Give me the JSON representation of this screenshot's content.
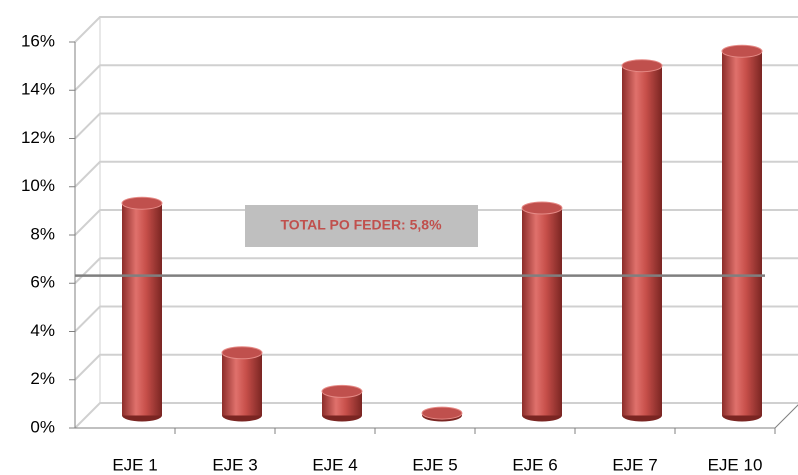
{
  "chart_data": {
    "type": "bar",
    "categories": [
      "EJE 1",
      "EJE 3",
      "EJE 4",
      "EJE 5",
      "EJE 6",
      "EJE 7",
      "EJE 10"
    ],
    "values": [
      8.8,
      2.6,
      1.0,
      0.1,
      8.6,
      14.5,
      15.1
    ],
    "color": "#c0504d",
    "ylim": [
      0,
      16
    ],
    "yticks": [
      {
        "value": 0,
        "label": "0%"
      },
      {
        "value": 2,
        "label": "2%"
      },
      {
        "value": 4,
        "label": "4%"
      },
      {
        "value": 6,
        "label": "6%"
      },
      {
        "value": 8,
        "label": "8%"
      },
      {
        "value": 10,
        "label": "10%"
      },
      {
        "value": 12,
        "label": "12%"
      },
      {
        "value": 14,
        "label": "14%"
      },
      {
        "value": 16,
        "label": "16%"
      }
    ],
    "grid": true,
    "reference_line": {
      "value": 5.8,
      "label": "TOTAL PO FEDER: 5,8%",
      "color": "#7f7f7f"
    }
  }
}
